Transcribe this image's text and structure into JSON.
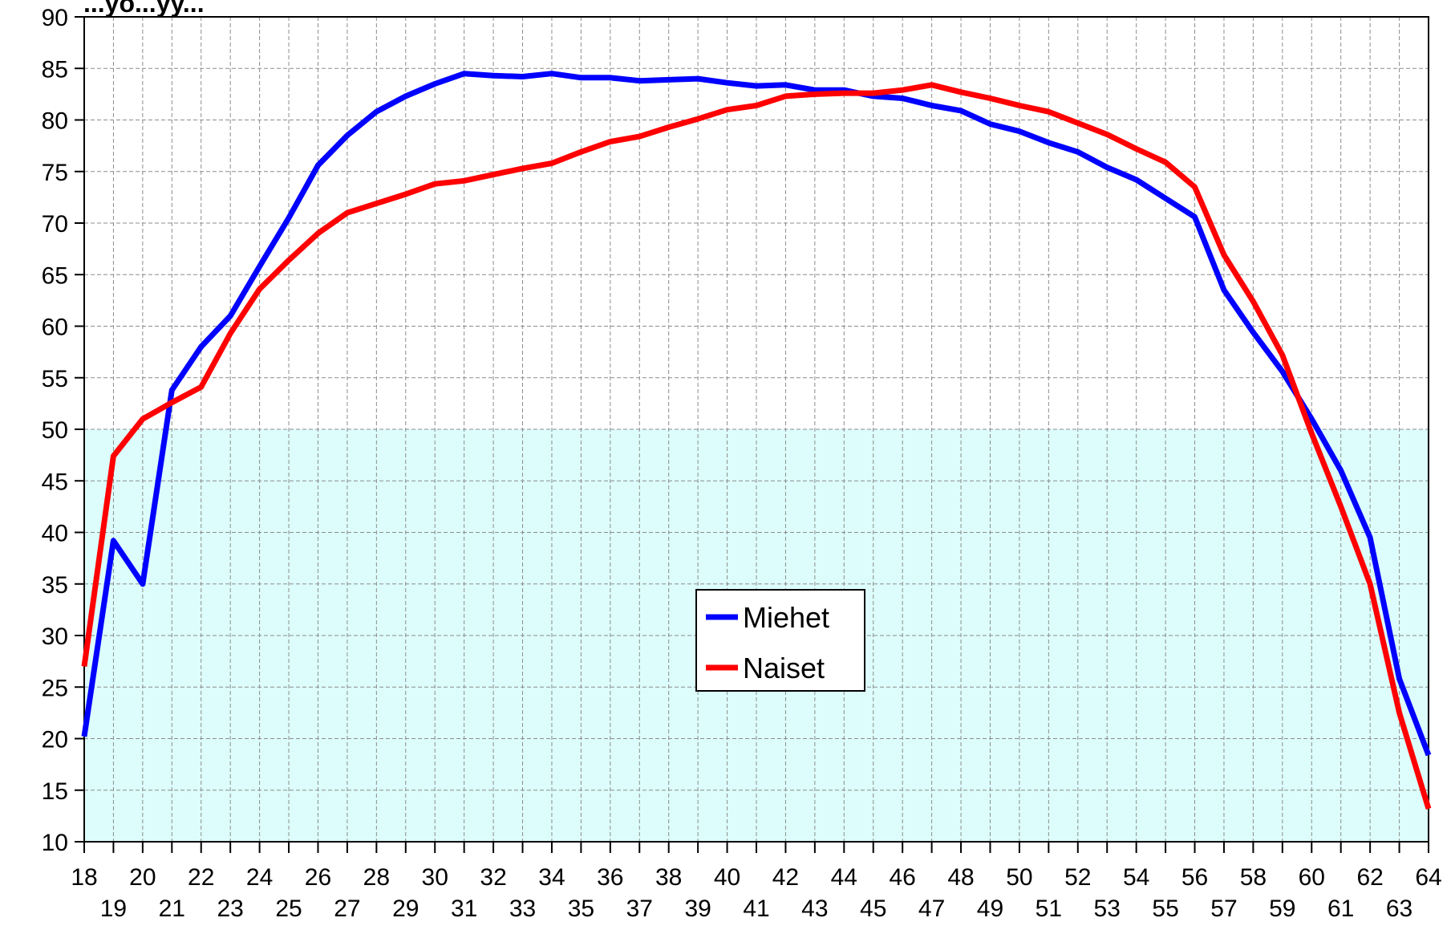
{
  "chart_data": {
    "type": "line",
    "title": "...yö...yy...",
    "xlabel": "",
    "ylabel": "",
    "x": [
      18,
      19,
      20,
      21,
      22,
      23,
      24,
      25,
      26,
      27,
      28,
      29,
      30,
      31,
      32,
      33,
      34,
      35,
      36,
      37,
      38,
      39,
      40,
      41,
      42,
      43,
      44,
      45,
      46,
      47,
      48,
      49,
      50,
      51,
      52,
      53,
      54,
      55,
      56,
      57,
      58,
      59,
      60,
      61,
      62,
      63,
      64
    ],
    "ylim": [
      10,
      90
    ],
    "yticks": [
      10,
      15,
      20,
      25,
      30,
      35,
      40,
      45,
      50,
      55,
      60,
      65,
      70,
      75,
      80,
      85,
      90
    ],
    "xticks_top_row": [
      18,
      20,
      22,
      24,
      26,
      28,
      30,
      32,
      34,
      36,
      38,
      40,
      42,
      44,
      46,
      48,
      50,
      52,
      54,
      56,
      58,
      60,
      62,
      64
    ],
    "xticks_bottom_row": [
      19,
      21,
      23,
      25,
      27,
      29,
      31,
      33,
      35,
      37,
      39,
      41,
      43,
      45,
      47,
      49,
      51,
      53,
      55,
      57,
      59,
      61,
      63
    ],
    "grid": true,
    "shaded_band": {
      "from": 10,
      "to": 50,
      "color": "#dcfdfb"
    },
    "legend_position": "center",
    "series": [
      {
        "name": "Miehet",
        "color": "#0000ff",
        "values": [
          20.2,
          39.2,
          35.0,
          53.8,
          58.0,
          61.0,
          65.8,
          70.5,
          75.6,
          78.5,
          80.8,
          82.3,
          83.5,
          84.5,
          84.3,
          84.2,
          84.5,
          84.1,
          84.1,
          83.8,
          83.9,
          84.0,
          83.6,
          83.3,
          83.4,
          82.9,
          82.9,
          82.3,
          82.1,
          81.4,
          80.9,
          79.6,
          78.9,
          77.8,
          76.9,
          75.4,
          74.2,
          72.4,
          70.6,
          63.5,
          59.4,
          55.6,
          51.0,
          46.0,
          39.5,
          25.8,
          18.4
        ]
      },
      {
        "name": "Naiset",
        "color": "#ff0000",
        "values": [
          27.0,
          47.4,
          51.0,
          52.6,
          54.1,
          59.3,
          63.6,
          66.4,
          69.0,
          71.0,
          71.9,
          72.8,
          73.8,
          74.1,
          74.7,
          75.3,
          75.8,
          76.9,
          77.9,
          78.4,
          79.3,
          80.1,
          81.0,
          81.4,
          82.3,
          82.5,
          82.6,
          82.6,
          82.9,
          83.4,
          82.7,
          82.1,
          81.4,
          80.8,
          79.7,
          78.6,
          77.2,
          75.9,
          73.5,
          66.9,
          62.4,
          57.2,
          49.6,
          42.5,
          35.0,
          22.5,
          13.2
        ]
      }
    ]
  }
}
